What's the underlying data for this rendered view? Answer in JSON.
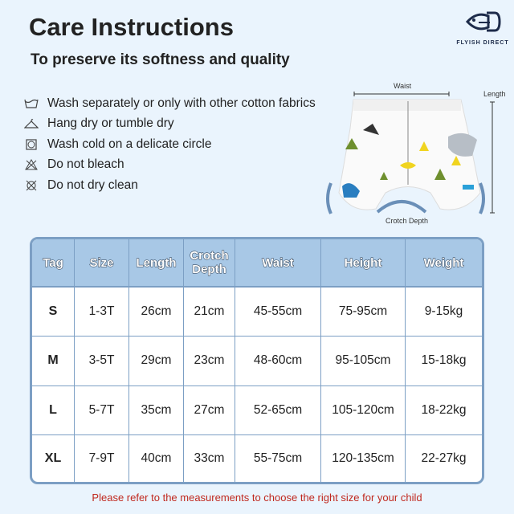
{
  "title": "Care Instructions",
  "subtitle": "To preserve its softness and quality",
  "logo": {
    "text": "FLYISH DIRECT",
    "color": "#1d2b4a"
  },
  "care": [
    {
      "icon": "wash-tub-icon",
      "label": "Wash separately or only with other cotton fabrics"
    },
    {
      "icon": "hanger-icon",
      "label": "Hang dry or tumble dry"
    },
    {
      "icon": "tumble-dry-icon",
      "label": "Wash cold on a delicate circle"
    },
    {
      "icon": "no-bleach-icon",
      "label": "Do not bleach"
    },
    {
      "icon": "no-dry-clean-icon",
      "label": "Do not dry clean"
    }
  ],
  "diagram": {
    "waist": "Waist",
    "length": "Length",
    "crotch": "Crotch Depth"
  },
  "table": {
    "headers": [
      "Tag",
      "Size",
      "Length",
      "Crotch Depth",
      "Waist",
      "Height",
      "Weight"
    ],
    "rows": [
      [
        "S",
        "1-3T",
        "26cm",
        "21cm",
        "45-55cm",
        "75-95cm",
        "9-15kg"
      ],
      [
        "M",
        "3-5T",
        "29cm",
        "23cm",
        "48-60cm",
        "95-105cm",
        "15-18kg"
      ],
      [
        "L",
        "5-7T",
        "35cm",
        "27cm",
        "52-65cm",
        "105-120cm",
        "18-22kg"
      ],
      [
        "XL",
        "7-9T",
        "40cm",
        "33cm",
        "55-75cm",
        "120-135cm",
        "22-27kg"
      ]
    ]
  },
  "note": "Please refer to the measurements to choose the right size for your child",
  "colors": {
    "background": "#eaf4fd",
    "header": "#a8c8e6",
    "border": "#7c9fc4",
    "note": "#c0281e"
  }
}
